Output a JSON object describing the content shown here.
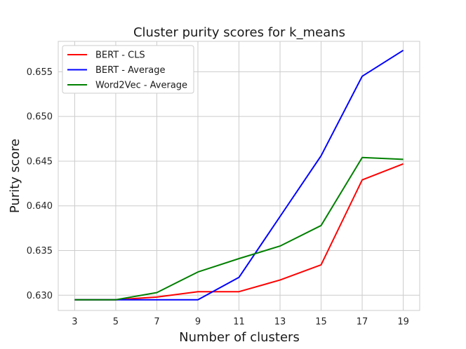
{
  "chart_data": {
    "type": "line",
    "title": "Cluster purity scores for k_means",
    "xlabel": "Number of clusters",
    "ylabel": "Purity score",
    "x": [
      3,
      5,
      7,
      9,
      11,
      13,
      15,
      17,
      19
    ],
    "xticks": [
      "3",
      "5",
      "7",
      "9",
      "11",
      "13",
      "15",
      "17",
      "19"
    ],
    "yticks": [
      "0.630",
      "0.635",
      "0.640",
      "0.645",
      "0.650",
      "0.655"
    ],
    "ylim": [
      0.6283,
      0.6584
    ],
    "xlim": [
      2.2,
      19.8
    ],
    "grid": true,
    "legend_position": "top-left",
    "series": [
      {
        "name": "BERT - CLS",
        "color": "#ff0000",
        "values": [
          0.6295,
          0.6295,
          0.6298,
          0.6304,
          0.6304,
          0.6317,
          0.6334,
          0.6429,
          0.6447
        ]
      },
      {
        "name": "BERT - Average",
        "color": "#0000ff",
        "values": [
          0.6295,
          0.6295,
          0.6295,
          0.6295,
          0.632,
          0.6388,
          0.6456,
          0.6545,
          0.6574
        ]
      },
      {
        "name": "Word2Vec - Average",
        "color": "#008000",
        "values": [
          0.6295,
          0.6295,
          0.6303,
          0.6326,
          0.6341,
          0.6355,
          0.6378,
          0.6454,
          0.6452
        ]
      }
    ]
  }
}
